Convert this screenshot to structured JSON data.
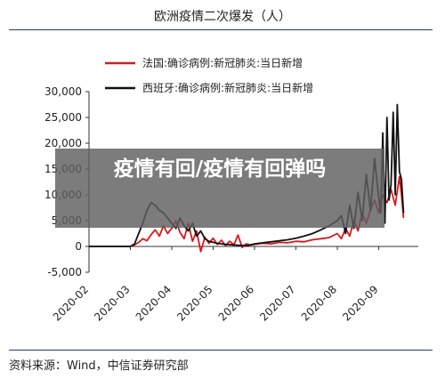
{
  "chart_data": {
    "type": "line",
    "title": "欧洲疫情二次爆发（人）",
    "source": "资料来源：Wind，中信证券研究部",
    "overlay_text": "疫情有回/疫情有回弹吗",
    "ylim": [
      -5000,
      30000
    ],
    "yticks": [
      "30,000",
      "25,000",
      "20,000",
      "15,000",
      "10,000",
      "5,000",
      "0",
      "-5,000"
    ],
    "ytick_values": [
      30000,
      25000,
      20000,
      15000,
      10000,
      5000,
      0,
      -5000
    ],
    "xticks": [
      "2020-02",
      "2020-03",
      "2020-04",
      "2020-05",
      "2020-06",
      "2020-07",
      "2020-08",
      "2020-09"
    ],
    "x_range": [
      0,
      7.6
    ],
    "grid": false,
    "legend_position": "top-center",
    "series": [
      {
        "name": "法国:确诊病例:新冠肺炎:当日新增",
        "color": "#d7191c",
        "x": [
          0,
          0.5,
          1,
          1.1,
          1.2,
          1.3,
          1.4,
          1.5,
          1.6,
          1.7,
          1.8,
          1.9,
          2.0,
          2.1,
          2.2,
          2.3,
          2.4,
          2.5,
          2.6,
          2.7,
          2.8,
          2.9,
          3.0,
          3.1,
          3.2,
          3.3,
          3.4,
          3.5,
          3.6,
          3.7,
          3.8,
          3.9,
          4.0,
          4.2,
          4.4,
          4.6,
          4.8,
          5.0,
          5.2,
          5.4,
          5.6,
          5.8,
          6.0,
          6.1,
          6.2,
          6.3,
          6.4,
          6.5,
          6.6,
          6.7,
          6.8,
          6.9,
          7.0,
          7.1,
          7.2,
          7.3,
          7.4,
          7.5,
          7.55,
          7.6
        ],
        "values": [
          0,
          0,
          0,
          300,
          800,
          1500,
          1100,
          2300,
          3200,
          2000,
          4000,
          2500,
          3500,
          5000,
          2700,
          1500,
          4500,
          1000,
          3000,
          -1000,
          1800,
          600,
          1600,
          400,
          1200,
          200,
          1000,
          300,
          2200,
          -200,
          500,
          300,
          400,
          600,
          500,
          800,
          700,
          1000,
          900,
          1300,
          1500,
          1700,
          2500,
          1500,
          3500,
          2000,
          5000,
          3000,
          6500,
          4500,
          7000,
          9000,
          6500,
          10000,
          8500,
          11000,
          8000,
          13500,
          10000,
          5500
        ]
      },
      {
        "name": "西班牙:确诊病例:新冠肺炎:当日新增",
        "color": "#111111",
        "x": [
          0,
          0.5,
          1,
          1.1,
          1.2,
          1.3,
          1.4,
          1.5,
          1.6,
          1.7,
          1.8,
          1.9,
          2.0,
          2.1,
          2.2,
          2.3,
          2.4,
          2.5,
          2.6,
          2.7,
          2.8,
          2.9,
          3.0,
          3.1,
          3.2,
          3.3,
          3.4,
          3.5,
          3.6,
          3.7,
          3.8,
          3.9,
          4.0,
          4.2,
          4.4,
          4.6,
          4.8,
          5.0,
          5.2,
          5.4,
          5.6,
          5.8,
          6.0,
          6.1,
          6.2,
          6.3,
          6.4,
          6.5,
          6.6,
          6.7,
          6.8,
          6.9,
          7.0,
          7.05,
          7.1,
          7.15,
          7.2,
          7.25,
          7.3,
          7.35,
          7.4,
          7.45,
          7.5,
          7.55,
          7.6
        ],
        "values": [
          0,
          0,
          0,
          500,
          2500,
          4500,
          7000,
          8500,
          8000,
          7000,
          6500,
          5500,
          4500,
          3500,
          5500,
          4000,
          3000,
          4500,
          2000,
          3000,
          1500,
          1000,
          800,
          600,
          500,
          400,
          350,
          300,
          250,
          200,
          150,
          300,
          500,
          700,
          900,
          1100,
          1300,
          1600,
          2000,
          2500,
          3200,
          4000,
          5000,
          6000,
          2500,
          8000,
          3500,
          10500,
          5000,
          14000,
          7000,
          17000,
          9500,
          6500,
          22000,
          4500,
          25000,
          9000,
          12000,
          26000,
          10000,
          27500,
          14500,
          13000,
          6500
        ]
      }
    ]
  }
}
